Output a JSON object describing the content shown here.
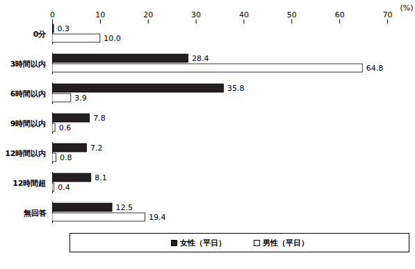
{
  "chart_data": {
    "type": "bar",
    "orientation": "horizontal",
    "categories": [
      "0分",
      "3時間以内",
      "6時間以内",
      "9時間以内",
      "12時間以内",
      "12時間超",
      "無回答"
    ],
    "series": [
      {
        "name": "女性（平日）",
        "color": "#231f20",
        "values": [
          0.3,
          28.4,
          35.8,
          7.8,
          7.2,
          8.1,
          12.5
        ],
        "value_labels": [
          "0.3",
          "28.4",
          "35.8",
          "7.8",
          "7.2",
          "8.1",
          "12.5"
        ]
      },
      {
        "name": "男性（平日）",
        "color": "#ffffff",
        "values": [
          10.0,
          64.8,
          3.9,
          0.6,
          0.8,
          0.4,
          19.4
        ],
        "value_labels": [
          "10.0",
          "64.8",
          "3.9",
          "0.6",
          "0.8",
          "0.4",
          "19.4"
        ]
      }
    ],
    "xlim": [
      0,
      70
    ],
    "xticks": [
      0,
      10,
      20,
      30,
      40,
      50,
      60,
      70
    ],
    "x_label": "(%)",
    "data_labels": true,
    "legend": "bottom"
  }
}
